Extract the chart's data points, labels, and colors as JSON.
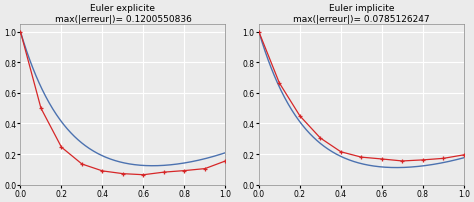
{
  "subplot1": {
    "title": "Euler explicite\nmax(|erreur|)= 0.1200550836",
    "red_x": [
      0.0,
      0.1,
      0.2,
      0.3,
      0.4,
      0.5,
      0.6,
      0.7,
      0.8,
      0.9,
      1.0
    ],
    "red_y": [
      1.0,
      0.5,
      0.245,
      0.135,
      0.09,
      0.072,
      0.065,
      0.082,
      0.092,
      0.105,
      0.155
    ],
    "blue_params": [
      1.0,
      4.5,
      0.12,
      2.0
    ]
  },
  "subplot2": {
    "title": "Euler implicite\nmax(|erreur|)= 0.0785126247",
    "red_x": [
      0.0,
      0.1,
      0.2,
      0.3,
      0.4,
      0.5,
      0.6,
      0.7,
      0.8,
      0.9,
      1.0
    ],
    "red_y": [
      1.0,
      0.665,
      0.45,
      0.305,
      0.215,
      0.18,
      0.168,
      0.155,
      0.162,
      0.172,
      0.195
    ],
    "blue_params": [
      1.0,
      4.5,
      0.1,
      2.0
    ]
  },
  "blue_color": "#4c72b0",
  "red_color": "#d62728",
  "title_fontsize": 6.5,
  "tick_fontsize": 5.5,
  "background_color": "#ebebeb",
  "grid_color": "white",
  "ylim": [
    0.0,
    1.05
  ],
  "xlim": [
    0.0,
    1.0
  ],
  "figsize": [
    4.74,
    2.03
  ],
  "dpi": 100
}
